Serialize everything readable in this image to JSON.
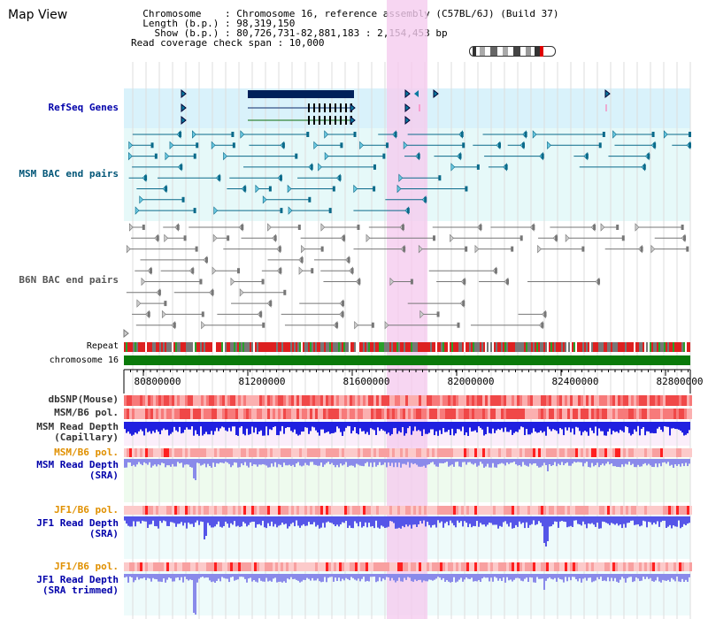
{
  "page": {
    "title": "Map View",
    "info_lines": [
      "  Chromosome    : Chromosome 16, reference assembly (C57BL/6J) (Build 37)",
      "  Length (b.p.) : 98,319,150",
      "    Show (b.p.) : 80,726,731-82,881,183 : 2,154,453 bp",
      "Read coverage check span : 10,000"
    ]
  },
  "tracks": [
    {
      "label": "RefSeq Genes",
      "color": "#0000aa"
    },
    {
      "label": "MSM BAC end pairs",
      "color": "#005577"
    },
    {
      "label": "B6N BAC end pairs",
      "color": "#555555"
    },
    {
      "label": "Repeat",
      "color": "#000000"
    },
    {
      "label": "chromosome 16",
      "color": "#000000"
    },
    {
      "label": "dbSNP(Mouse)",
      "color": "#333333"
    },
    {
      "label": "MSM/B6 pol.",
      "color": "#333333"
    },
    {
      "label": "MSM Read Depth\n(Capillary)",
      "color": "#333333"
    },
    {
      "label": "MSM/B6 pol.",
      "color": "#e09000"
    },
    {
      "label": "MSM Read Depth\n(SRA)",
      "color": "#0000aa"
    },
    {
      "label": "JF1/B6 pol.",
      "color": "#e09000"
    },
    {
      "label": "JF1 Read Depth\n(SRA)",
      "color": "#0000aa"
    },
    {
      "label": "JF1/B6 pol.",
      "color": "#e09000"
    },
    {
      "label": "JF1 Read Depth\n(SRA trimmed)",
      "color": "#0000aa"
    }
  ],
  "axis": {
    "ticks": [
      "80800000",
      "81200000",
      "81600000",
      "82000000",
      "82400000",
      "82800000"
    ]
  },
  "colors": {
    "accent": "#0000aa",
    "highlight": "#f5ccef",
    "chromosome": "#0a7a0a",
    "msm": "#006a8a"
  }
}
